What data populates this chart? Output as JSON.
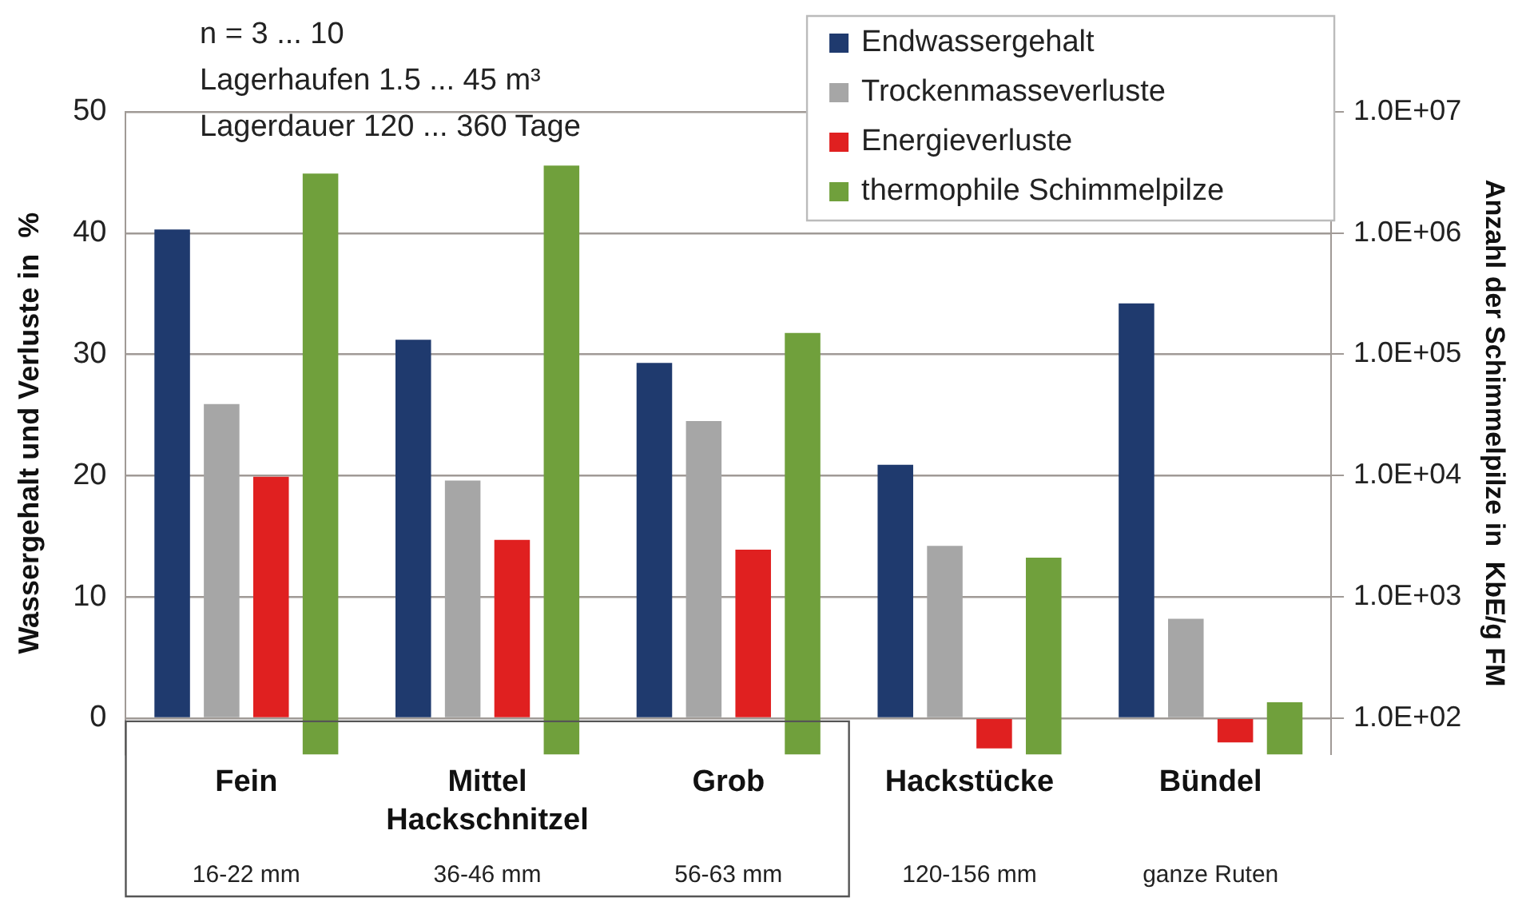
{
  "chart_data": {
    "type": "bar",
    "categories": [
      "Fein",
      "Mittel",
      "Grob",
      "Hackstücke",
      "Bündel"
    ],
    "series": [
      {
        "name": "Endwassergehalt",
        "color": "#1f3a6e",
        "values": [
          40.3,
          31.2,
          29.3,
          20.9,
          34.2
        ]
      },
      {
        "name": "Trockenmasseverluste",
        "color": "#a6a6a6",
        "values": [
          25.9,
          19.6,
          24.5,
          14.2,
          8.2
        ]
      },
      {
        "name": "Energieverluste",
        "color": "#e02020",
        "values": [
          19.9,
          14.7,
          13.9,
          -2.5,
          -2
        ]
      },
      {
        "name": "thermophile Schimmelpilze",
        "color": "#70a03c",
        "axis": "y2",
        "values": [
          3100000,
          3600000,
          150000,
          2100,
          135
        ]
      }
    ],
    "ylabel": "Wassergehalt und Verluste in  %",
    "y2label": "Anzahl der Schimmelpilze in  KbE/g FM",
    "ylim": [
      -3,
      50
    ],
    "yticks": [
      0,
      10,
      20,
      30,
      40,
      50
    ],
    "y2lim": [
      50,
      10000000
    ],
    "y2ticks": [
      {
        "value": 100,
        "label": "1.0E+02"
      },
      {
        "value": 1000,
        "label": "1.0E+03"
      },
      {
        "value": 10000,
        "label": "1.0E+04"
      },
      {
        "value": 100000,
        "label": "1.0E+05"
      },
      {
        "value": 1000000,
        "label": "1.0E+06"
      },
      {
        "value": 10000000,
        "label": "1.0E+07"
      }
    ],
    "log": "y2",
    "grid": "y",
    "legend": "top right",
    "annotations": [
      "n = 3 ... 10",
      "Lagerhaufen 1.5 ... 45 m³",
      "Lagerdauer 120 ... 360 Tage",
      "Hackschnitzel",
      "16-22 mm",
      "36-46 mm",
      "56-63 mm",
      "120-156 mm",
      "ganze Ruten"
    ]
  }
}
